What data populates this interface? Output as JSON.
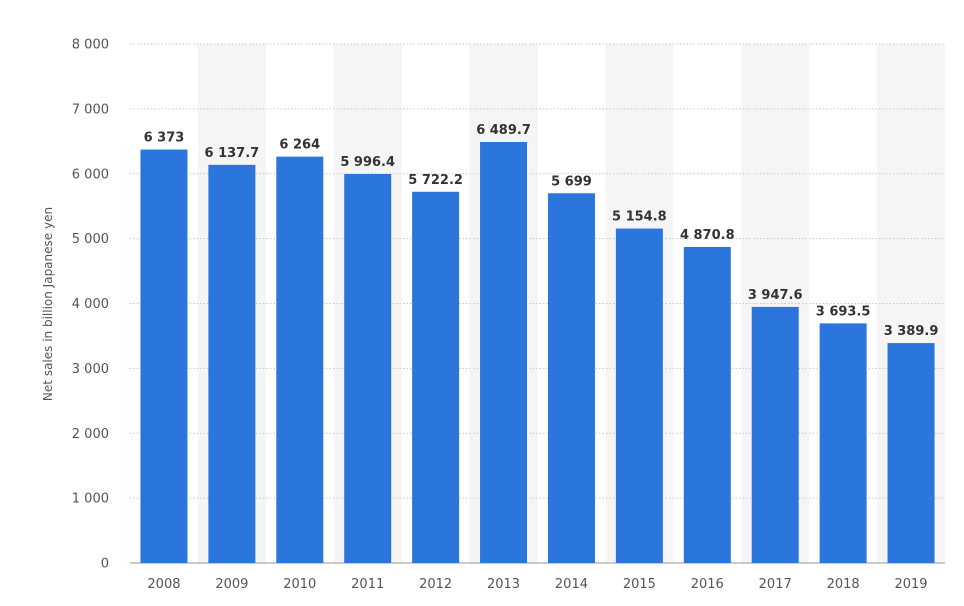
{
  "chart_data": {
    "type": "bar",
    "title": "",
    "xlabel": "",
    "ylabel": "Net sales in billion Japanese yen",
    "categories": [
      "2008",
      "2009",
      "2010",
      "2011",
      "2012",
      "2013",
      "2014",
      "2015",
      "2016",
      "2017",
      "2018",
      "2019"
    ],
    "values": [
      6373,
      6137.7,
      6264,
      5996.4,
      5722.2,
      6489.7,
      5699,
      5154.8,
      4870.8,
      3947.6,
      3693.5,
      3389.9
    ],
    "value_labels": [
      "6 373",
      "6 137.7",
      "6 264",
      "5 996.4",
      "5 722.2",
      "6 489.7",
      "5 699",
      "5 154.8",
      "4 870.8",
      "3 947.6",
      "3 693.5",
      "3 389.9"
    ],
    "y_ticks": [
      0,
      1000,
      2000,
      3000,
      4000,
      5000,
      6000,
      7000,
      8000
    ],
    "y_tick_labels": [
      "0",
      "1 000",
      "2 000",
      "3 000",
      "4 000",
      "5 000",
      "6 000",
      "7 000",
      "8 000"
    ],
    "ylim": [
      0,
      8000
    ],
    "grid": true,
    "legend": "none",
    "colors": {
      "bar": "#2a76dd",
      "band": "#f5f5f5",
      "grid": "#c8c8c8",
      "tick_text": "#555555",
      "label_text": "#333333"
    }
  }
}
